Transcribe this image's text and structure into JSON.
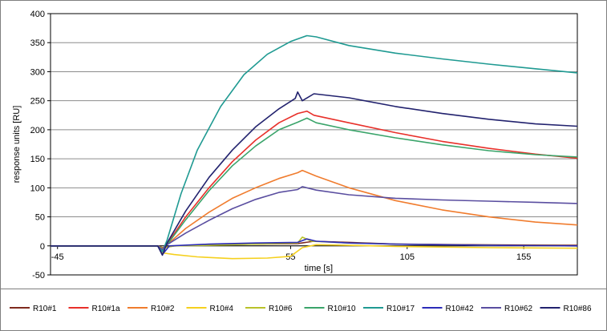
{
  "chart_data": {
    "type": "line",
    "title": "",
    "xlabel": "time [s]",
    "ylabel": "response units  [RU]",
    "xlim": [
      -48,
      178
    ],
    "ylim": [
      -50,
      400
    ],
    "x_ticks": [
      -45,
      55,
      105,
      155
    ],
    "y_ticks": [
      -50,
      0,
      50,
      100,
      150,
      200,
      250,
      300,
      350,
      400
    ],
    "x_tick_labels": [
      "-45",
      "55",
      "105",
      "155"
    ],
    "y_tick_labels": [
      "-50",
      "0",
      "50",
      "100",
      "150",
      "200",
      "250",
      "300",
      "350",
      "400"
    ],
    "grid": "horizontal",
    "legend_position": "bottom",
    "series": [
      {
        "name": "R10#1",
        "color": "#7f2a1e",
        "points": [
          [
            -48,
            0
          ],
          [
            -2,
            0
          ],
          [
            0,
            -3
          ],
          [
            5,
            0
          ],
          [
            20,
            2
          ],
          [
            40,
            3
          ],
          [
            58,
            4
          ],
          [
            65,
            8
          ],
          [
            80,
            6
          ],
          [
            100,
            3
          ],
          [
            130,
            2
          ],
          [
            178,
            1
          ]
        ]
      },
      {
        "name": "R10#1a",
        "color": "#e8302a",
        "points": [
          [
            -48,
            0
          ],
          [
            -2,
            0
          ],
          [
            0,
            -8
          ],
          [
            2,
            3
          ],
          [
            10,
            50
          ],
          [
            20,
            100
          ],
          [
            30,
            145
          ],
          [
            40,
            182
          ],
          [
            50,
            212
          ],
          [
            58,
            228
          ],
          [
            62,
            232
          ],
          [
            65,
            225
          ],
          [
            80,
            212
          ],
          [
            100,
            195
          ],
          [
            120,
            180
          ],
          [
            140,
            168
          ],
          [
            160,
            158
          ],
          [
            178,
            151
          ]
        ]
      },
      {
        "name": "R10#2",
        "color": "#f07c2e",
        "points": [
          [
            -48,
            0
          ],
          [
            -2,
            0
          ],
          [
            0,
            -5
          ],
          [
            2,
            2
          ],
          [
            10,
            30
          ],
          [
            20,
            58
          ],
          [
            30,
            82
          ],
          [
            40,
            100
          ],
          [
            50,
            116
          ],
          [
            58,
            126
          ],
          [
            60,
            130
          ],
          [
            66,
            120
          ],
          [
            80,
            100
          ],
          [
            100,
            78
          ],
          [
            120,
            62
          ],
          [
            140,
            50
          ],
          [
            160,
            41
          ],
          [
            178,
            36
          ]
        ]
      },
      {
        "name": "R10#4",
        "color": "#f5d01e",
        "points": [
          [
            -48,
            0
          ],
          [
            -2,
            0
          ],
          [
            0,
            -12
          ],
          [
            5,
            -15
          ],
          [
            15,
            -19
          ],
          [
            30,
            -22
          ],
          [
            45,
            -21
          ],
          [
            55,
            -18
          ],
          [
            60,
            -3
          ],
          [
            66,
            2
          ],
          [
            80,
            1
          ],
          [
            100,
            -1
          ],
          [
            140,
            -3
          ],
          [
            178,
            -4
          ]
        ]
      },
      {
        "name": "R10#6",
        "color": "#b9c22a",
        "points": [
          [
            -48,
            0
          ],
          [
            -2,
            0
          ],
          [
            0,
            -4
          ],
          [
            5,
            0
          ],
          [
            20,
            1
          ],
          [
            40,
            3
          ],
          [
            58,
            5
          ],
          [
            60,
            15
          ],
          [
            64,
            8
          ],
          [
            80,
            5
          ],
          [
            100,
            3
          ],
          [
            140,
            1
          ],
          [
            178,
            0
          ]
        ]
      },
      {
        "name": "R10#10",
        "color": "#3aa46a",
        "points": [
          [
            -48,
            0
          ],
          [
            -2,
            0
          ],
          [
            0,
            -8
          ],
          [
            2,
            2
          ],
          [
            10,
            45
          ],
          [
            20,
            95
          ],
          [
            30,
            138
          ],
          [
            40,
            172
          ],
          [
            50,
            200
          ],
          [
            58,
            213
          ],
          [
            62,
            220
          ],
          [
            66,
            212
          ],
          [
            80,
            200
          ],
          [
            100,
            186
          ],
          [
            120,
            174
          ],
          [
            140,
            164
          ],
          [
            160,
            157
          ],
          [
            178,
            153
          ]
        ]
      },
      {
        "name": "R10#17",
        "color": "#1f9a92",
        "points": [
          [
            -48,
            0
          ],
          [
            -2,
            0
          ],
          [
            0,
            -10
          ],
          [
            2,
            10
          ],
          [
            8,
            90
          ],
          [
            15,
            165
          ],
          [
            25,
            240
          ],
          [
            35,
            295
          ],
          [
            45,
            330
          ],
          [
            55,
            352
          ],
          [
            62,
            362
          ],
          [
            66,
            360
          ],
          [
            80,
            345
          ],
          [
            100,
            332
          ],
          [
            120,
            322
          ],
          [
            140,
            313
          ],
          [
            160,
            305
          ],
          [
            178,
            298
          ]
        ]
      },
      {
        "name": "R10#42",
        "color": "#2c2cb8",
        "points": [
          [
            -48,
            0
          ],
          [
            -2,
            0
          ],
          [
            0,
            -15
          ],
          [
            3,
            0
          ],
          [
            20,
            3
          ],
          [
            40,
            5
          ],
          [
            58,
            6
          ],
          [
            62,
            12
          ],
          [
            66,
            8
          ],
          [
            80,
            5
          ],
          [
            100,
            3
          ],
          [
            140,
            1
          ],
          [
            178,
            0
          ]
        ]
      },
      {
        "name": "R10#62",
        "color": "#5a4ea0",
        "points": [
          [
            -48,
            0
          ],
          [
            -2,
            0
          ],
          [
            0,
            -6
          ],
          [
            2,
            2
          ],
          [
            10,
            22
          ],
          [
            20,
            44
          ],
          [
            30,
            64
          ],
          [
            40,
            80
          ],
          [
            50,
            92
          ],
          [
            58,
            97
          ],
          [
            60,
            102
          ],
          [
            66,
            96
          ],
          [
            80,
            88
          ],
          [
            100,
            82
          ],
          [
            120,
            79
          ],
          [
            140,
            77
          ],
          [
            160,
            75
          ],
          [
            178,
            73
          ]
        ]
      },
      {
        "name": "R10#86",
        "color": "#22226e",
        "points": [
          [
            -48,
            0
          ],
          [
            -2,
            0
          ],
          [
            0,
            -16
          ],
          [
            2,
            5
          ],
          [
            10,
            60
          ],
          [
            20,
            118
          ],
          [
            30,
            165
          ],
          [
            40,
            205
          ],
          [
            50,
            236
          ],
          [
            57,
            254
          ],
          [
            58,
            265
          ],
          [
            60,
            250
          ],
          [
            65,
            262
          ],
          [
            80,
            255
          ],
          [
            100,
            240
          ],
          [
            120,
            228
          ],
          [
            140,
            218
          ],
          [
            160,
            210
          ],
          [
            178,
            206
          ]
        ]
      }
    ]
  }
}
